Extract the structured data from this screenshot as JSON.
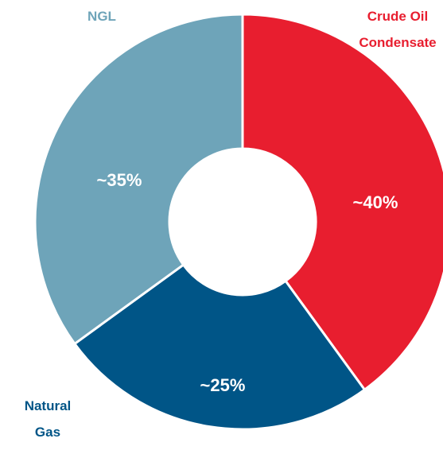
{
  "chart_data": {
    "type": "pie",
    "categories": [
      [
        "Crude Oil",
        "Condensate"
      ],
      [
        "Natural",
        "Gas"
      ],
      [
        "NGL"
      ]
    ],
    "values": [
      40,
      25,
      35
    ],
    "value_labels": [
      "~40%",
      "~25%",
      "~35%"
    ],
    "colors": [
      "#e81e2f",
      "#005587",
      "#6ea4b9"
    ]
  }
}
